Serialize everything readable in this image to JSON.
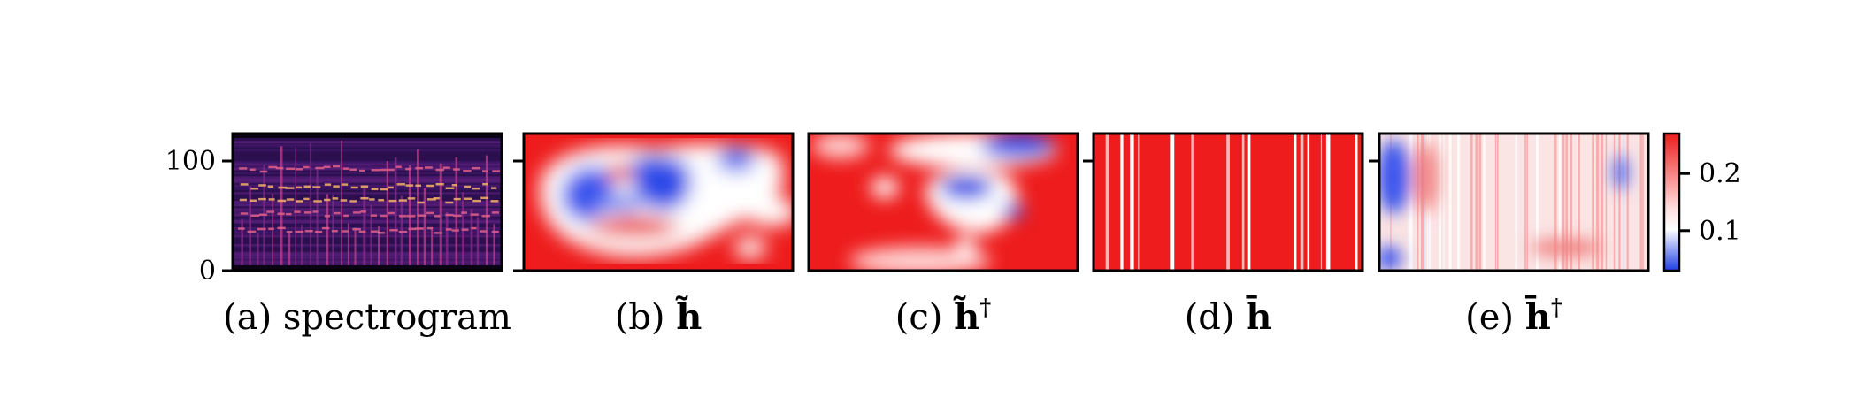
{
  "colors": {
    "heat_low": "#1f3fe6",
    "heat_mid": "#ffffff",
    "heat_high": "#ee1c1c",
    "spec_bg": "#2b0f4f",
    "spec_hot": "#f7b26a",
    "axis": "#000000"
  },
  "chart_data": [
    {
      "type": "heatmap",
      "caption": "(a) spectrogram",
      "ylim": [
        0,
        125
      ],
      "yticks": [
        {
          "value": 0,
          "label": "0"
        },
        {
          "value": 100,
          "label": "100"
        }
      ],
      "colormap": "magma"
    },
    {
      "type": "heatmap",
      "caption_prefix": "(b) ",
      "caption_symbol": "h̃",
      "caption_sup": "",
      "pattern": "smooth-blobs"
    },
    {
      "type": "heatmap",
      "caption_prefix": "(c) ",
      "caption_symbol": "h̃",
      "caption_sup": "†",
      "pattern": "smooth-blobs-sparse"
    },
    {
      "type": "heatmap",
      "caption_prefix": "(d) ",
      "caption_symbol": "h̄",
      "caption_sup": "",
      "pattern": "vertical-stripes"
    },
    {
      "type": "heatmap",
      "caption_prefix": "(e) ",
      "caption_symbol": "h̄",
      "caption_sup": "†",
      "pattern": "textured-stripes"
    }
  ],
  "colorbar": {
    "range": [
      0.03,
      0.27
    ],
    "ticks": [
      {
        "value": 0.1,
        "label": "0.1"
      },
      {
        "value": 0.2,
        "label": "0.2"
      }
    ]
  }
}
